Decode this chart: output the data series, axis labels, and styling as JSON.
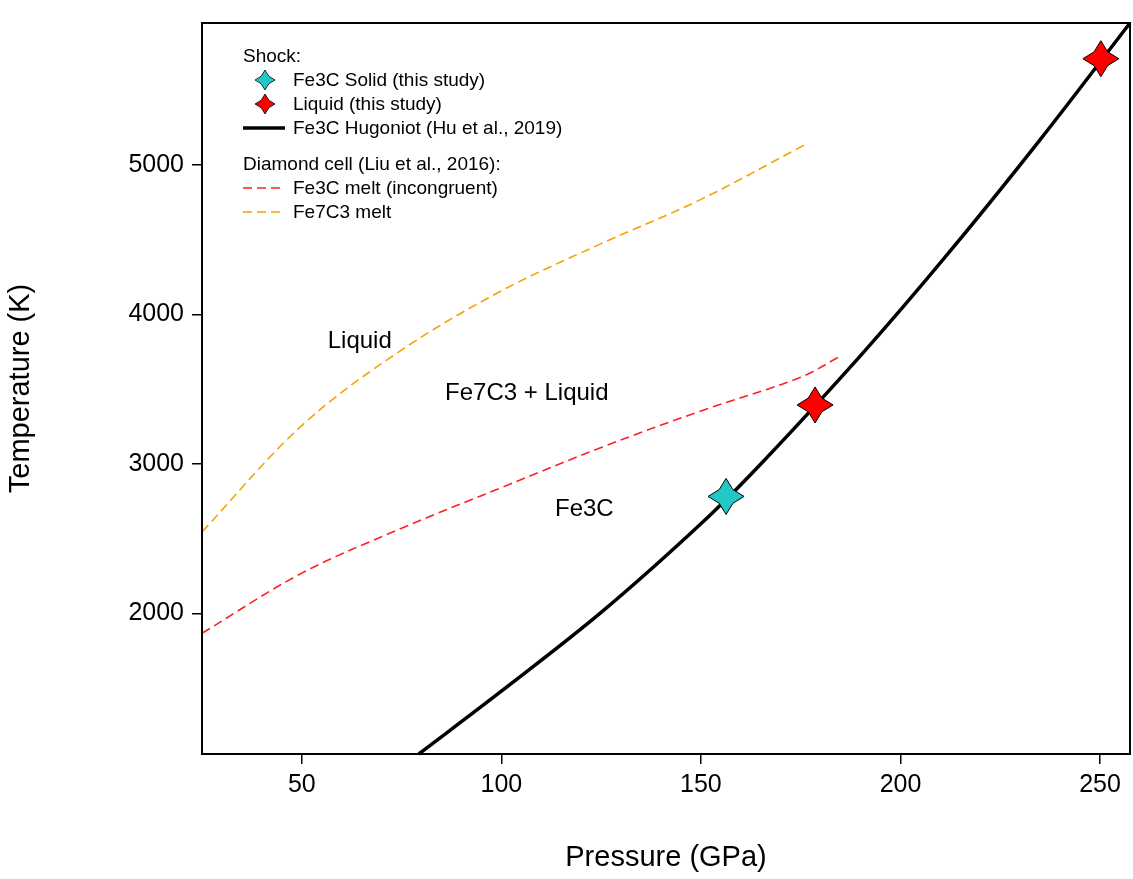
{
  "chart_data": {
    "type": "line",
    "xlabel": "Pressure (GPa)",
    "ylabel": "Temperature (K)",
    "legend_title": "Shock:",
    "legend": "top left",
    "grid": false,
    "xlim": [
      25,
      257.5
    ],
    "xticks": [
      50,
      100,
      150,
      200,
      250
    ],
    "ylim": [
      1060,
      5950
    ],
    "yticks": [
      2000,
      3000,
      4000,
      5000
    ],
    "series": [
      {
        "name": "Fe3C Solid (this study)",
        "type": "scatter",
        "marker": "star",
        "color": "#20c8c8",
        "x": [
          156.3
        ],
        "values": [
          2783
        ]
      },
      {
        "name": "Liquid (this study)",
        "type": "scatter",
        "marker": "star",
        "color": "#ff0000",
        "x": [
          178.6,
          250.2
        ],
        "values": [
          3395,
          5711
        ]
      },
      {
        "name": "Fe3C Hugoniot (Hu et al., 2019)",
        "type": "line",
        "line_style": "solid",
        "color": "#000000",
        "x": [
          79.3,
          100,
          125,
          150,
          165,
          190,
          212,
          235,
          257.5
        ],
        "values": [
          1060,
          1480,
          2007,
          2600,
          3000,
          3725,
          4410,
          5170,
          5950
        ]
      },
      {
        "name": "Fe3C melt (incongruent)",
        "type": "line",
        "line_style": "dashed",
        "color": "#ff2020",
        "x": [
          25,
          50,
          75,
          100,
          125,
          150,
          175,
          184.6
        ],
        "values": [
          1868,
          2270,
          2570,
          2842,
          3110,
          3355,
          3580,
          3717
        ]
      },
      {
        "name": "Fe7C3 melt",
        "type": "line",
        "line_style": "dashed",
        "color": "#f5a300",
        "x": [
          25,
          50,
          74.3,
          100,
          125,
          150,
          175.8
        ],
        "values": [
          2546,
          3257,
          3750,
          4158,
          4474,
          4770,
          5132
        ]
      }
    ],
    "annotations": [
      "Diamond cell (Liu et al., 2016):",
      "Liquid",
      "Fe7C3 + Liquid",
      "Fe3C"
    ]
  }
}
